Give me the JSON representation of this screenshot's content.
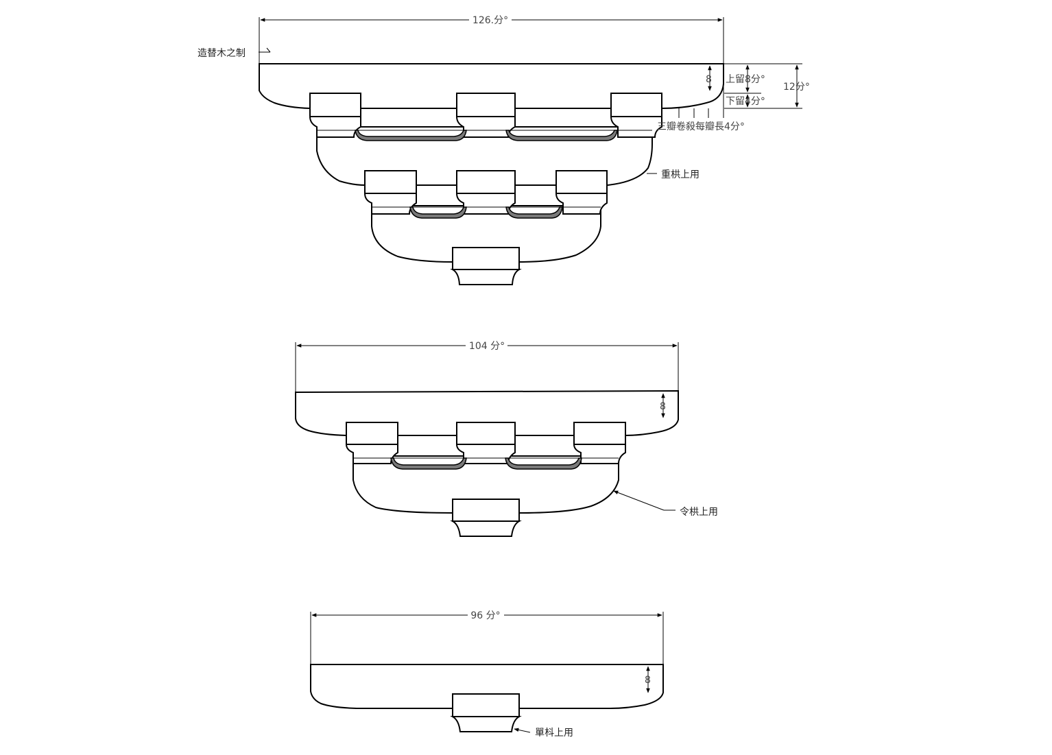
{
  "title_note": "造替木之制",
  "figures": [
    {
      "id": "fig1",
      "width_label": "126.分°",
      "height_label": "8",
      "upper_label": "上留8分°",
      "lower_label": "下留4分°",
      "total_label": "12分°",
      "roll_note": "三瓣卷殺每瓣長4分°",
      "usage_label": "重栱上用"
    },
    {
      "id": "fig2",
      "width_label": "104 分°",
      "height_label": "8",
      "usage_label": "令栱上用"
    },
    {
      "id": "fig3",
      "width_label": "96 分°",
      "height_label": "8",
      "usage_label": "單枓上用"
    }
  ]
}
